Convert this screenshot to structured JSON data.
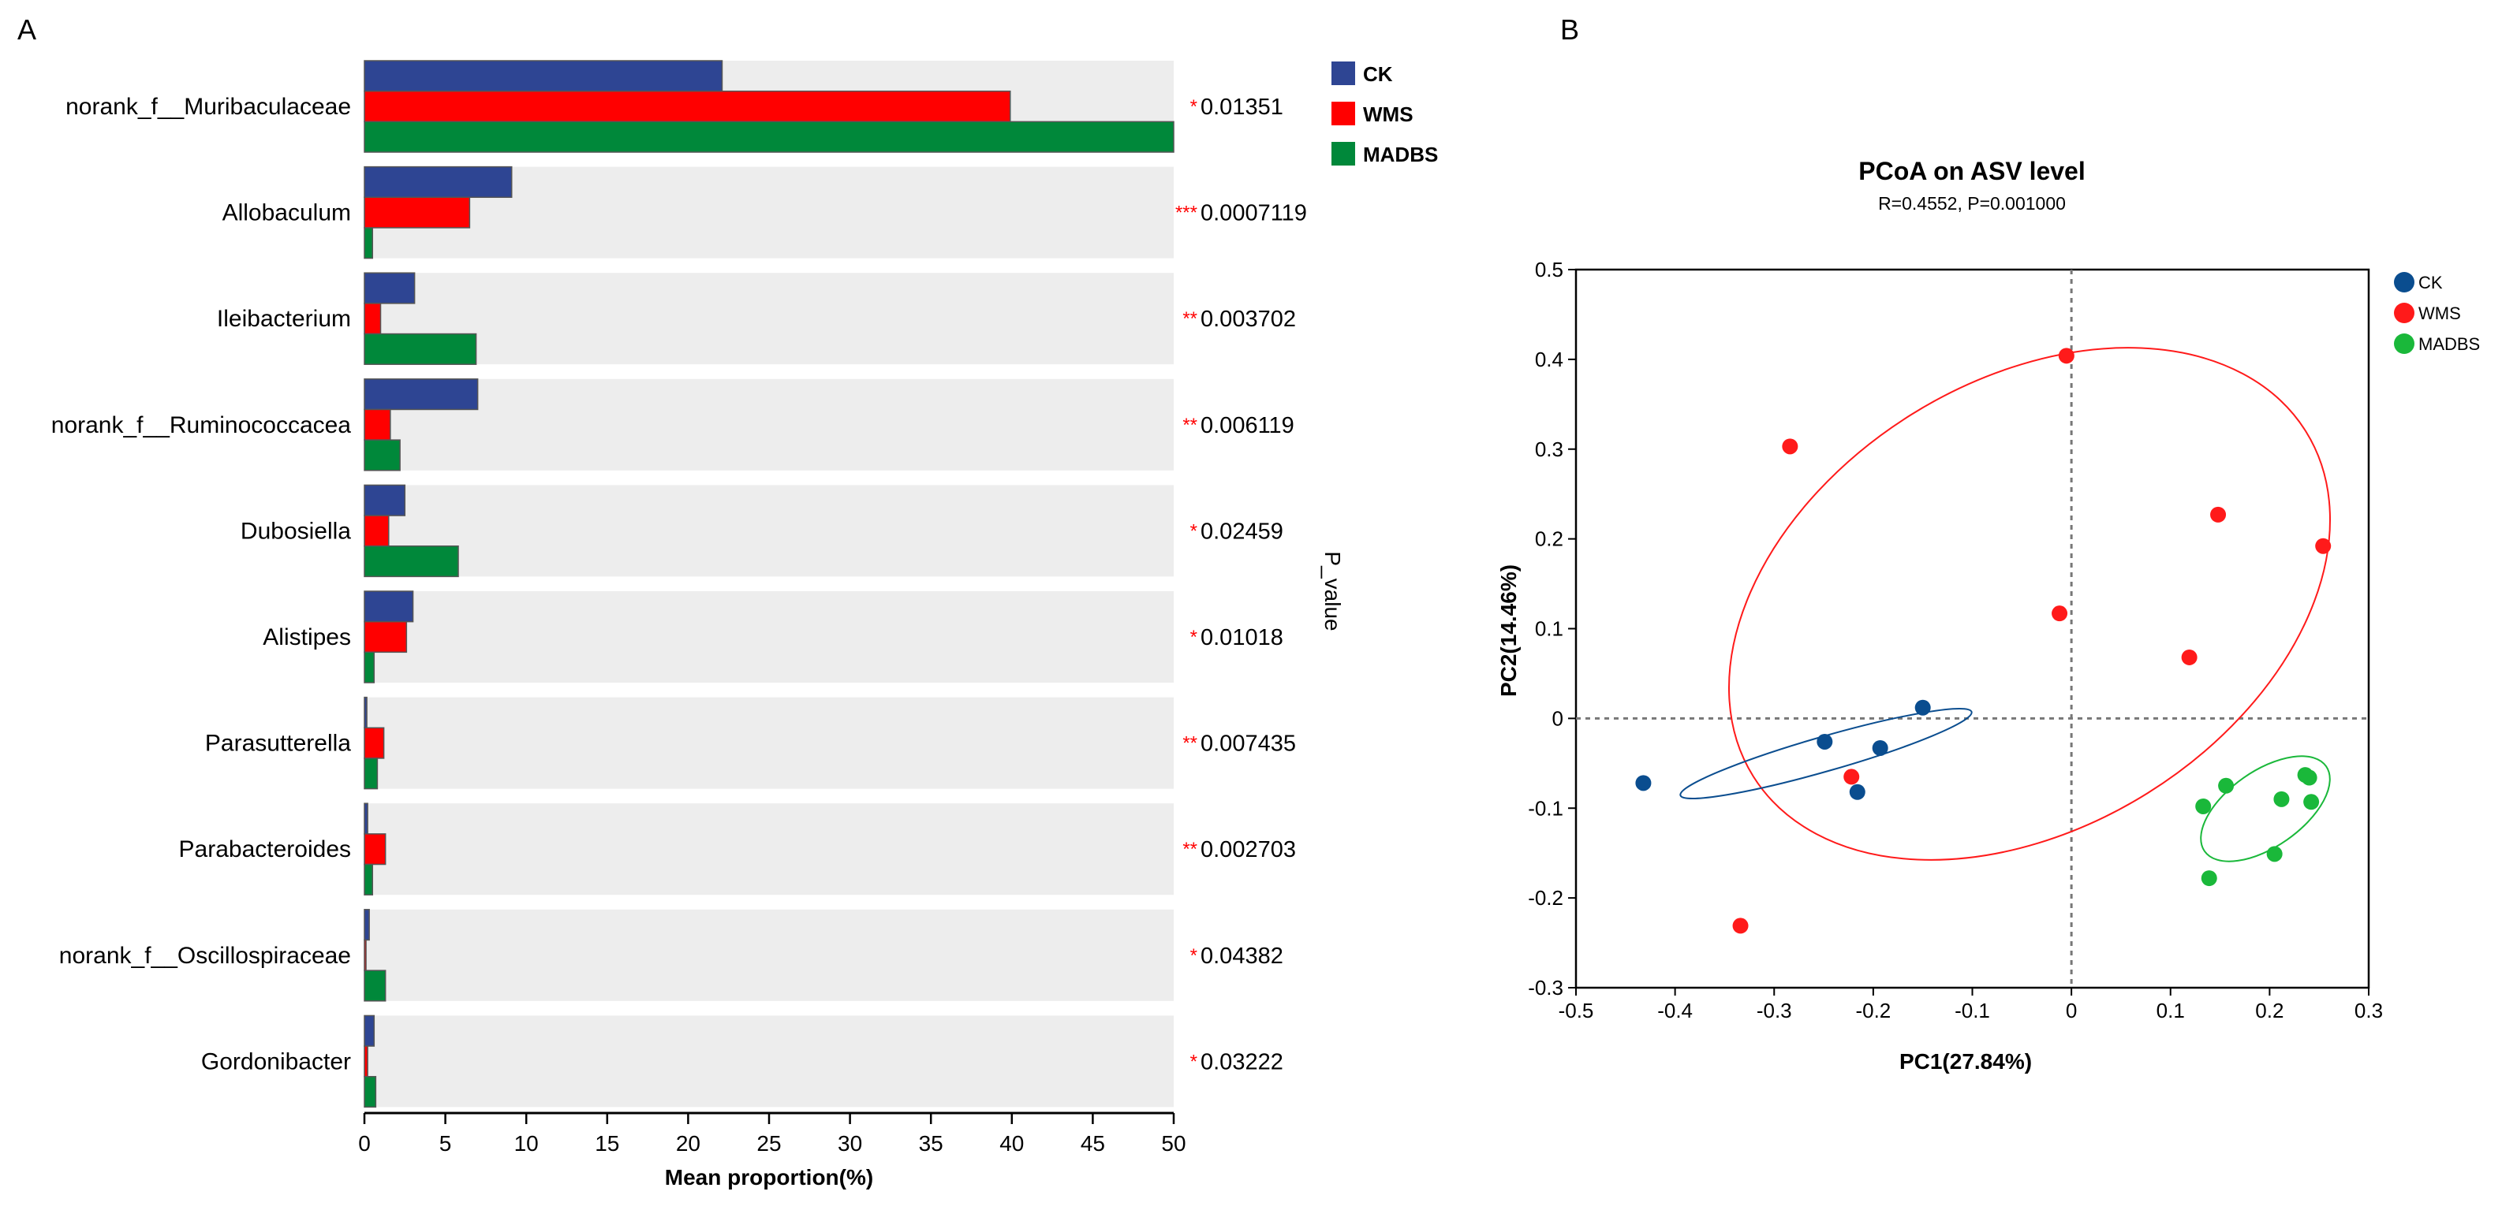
{
  "chart_data": [
    {
      "panel_label": "A",
      "type": "bar",
      "orientation": "horizontal",
      "categories": [
        "norank_f__Muribaculaceae",
        "Allobaculum",
        "Ileibacterium",
        "norank_f__Ruminococcacea",
        "Dubosiella",
        "Alistipes",
        "Parasutterella",
        "Parabacteroides",
        "norank_f__Oscillospiraceae",
        "Gordonibacter"
      ],
      "series": [
        {
          "name": "CK",
          "color": "#2e4593",
          "values": [
            22.1,
            9.1,
            3.1,
            7.0,
            2.5,
            3.0,
            0.15,
            0.2,
            0.3,
            0.6
          ]
        },
        {
          "name": "WMS",
          "color": "#ff0000",
          "values": [
            39.9,
            6.5,
            1.0,
            1.6,
            1.5,
            2.6,
            1.2,
            1.3,
            0.1,
            0.2
          ]
        },
        {
          "name": "MADBS",
          "color": "#00883a",
          "values": [
            50.0,
            0.5,
            6.9,
            2.2,
            5.8,
            0.6,
            0.8,
            0.5,
            1.3,
            0.7
          ]
        }
      ],
      "significance": [
        "*",
        "***",
        "**",
        "**",
        "*",
        "*",
        "**",
        "**",
        "*",
        "*"
      ],
      "p_values": [
        "0.01351",
        "0.0007119",
        "0.003702",
        "0.006119",
        "0.02459",
        "0.01018",
        "0.007435",
        "0.002703",
        "0.04382",
        "0.03222"
      ],
      "xlabel": "Mean proportion(%)",
      "right_label": "P_value",
      "xlim": [
        0,
        50
      ],
      "xticks": [
        "0",
        "5",
        "10",
        "15",
        "20",
        "25",
        "30",
        "35",
        "40",
        "45",
        "50"
      ],
      "legend_position": "top-right"
    },
    {
      "panel_label": "B",
      "type": "scatter",
      "title": "PCoA on ASV level",
      "subtitle": "R=0.4552, P=0.001000",
      "xlabel": "PC1(27.84%)",
      "ylabel": "PC2(14.46%)",
      "xlim": [
        -0.5,
        0.3
      ],
      "ylim": [
        -0.3,
        0.5
      ],
      "xticks": [
        "-0.5",
        "-0.4",
        "-0.3",
        "-0.2",
        "-0.1",
        "0",
        "0.1",
        "0.2",
        "0.3"
      ],
      "yticks": [
        "0.5",
        "0.4",
        "0.3",
        "0.2",
        "0.1",
        "0",
        "-0.1",
        "-0.2",
        "-0.3"
      ],
      "legend_position": "top-right",
      "series": [
        {
          "name": "CK",
          "color": "#0a4d8f",
          "points": [
            [
              -0.432,
              -0.072
            ],
            [
              -0.249,
              -0.026
            ],
            [
              -0.193,
              -0.033
            ],
            [
              -0.15,
              0.012
            ],
            [
              -0.216,
              -0.082
            ]
          ]
        },
        {
          "name": "WMS",
          "color": "#ff1a1a",
          "points": [
            [
              -0.005,
              0.404
            ],
            [
              -0.284,
              0.303
            ],
            [
              0.148,
              0.227
            ],
            [
              0.254,
              0.192
            ],
            [
              -0.012,
              0.117
            ],
            [
              0.119,
              0.068
            ],
            [
              -0.222,
              -0.065
            ],
            [
              -0.334,
              -0.231
            ]
          ]
        },
        {
          "name": "MADBS",
          "color": "#1ab83a",
          "points": [
            [
              0.133,
              -0.098
            ],
            [
              0.156,
              -0.075
            ],
            [
              0.212,
              -0.09
            ],
            [
              0.236,
              -0.063
            ],
            [
              0.24,
              -0.066
            ],
            [
              0.242,
              -0.093
            ],
            [
              0.205,
              -0.151
            ],
            [
              0.139,
              -0.178
            ]
          ]
        }
      ]
    }
  ]
}
